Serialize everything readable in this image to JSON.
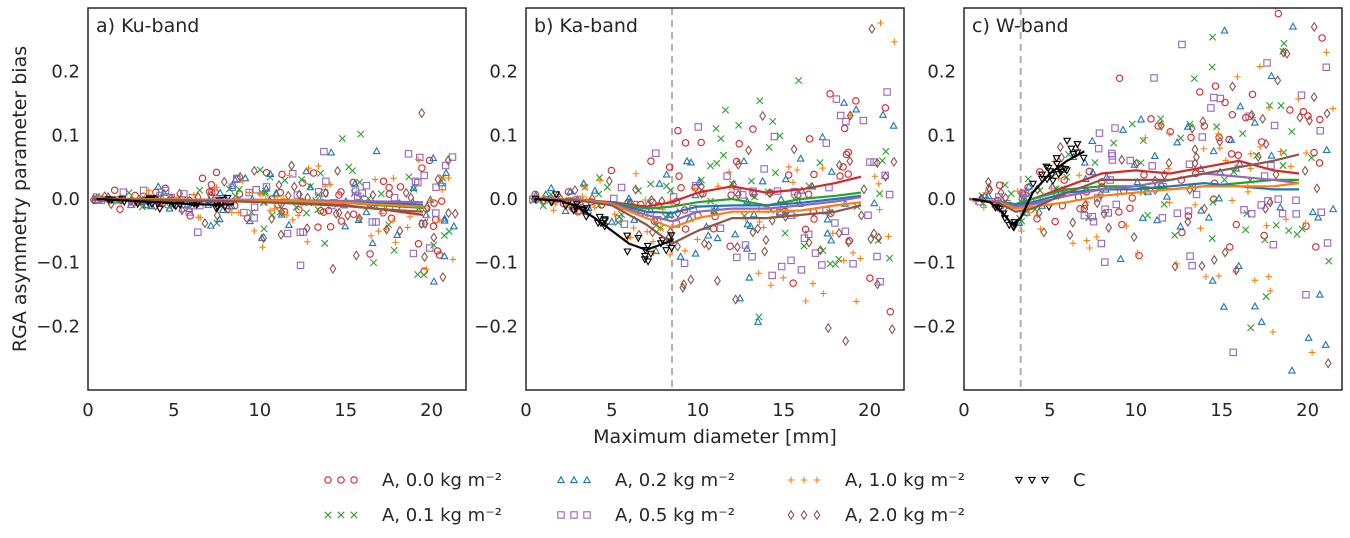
{
  "figure": {
    "ylabel": "RGA asymmetry parameter bias",
    "xlabel": "Maximum diameter [mm]"
  },
  "legend": [
    {
      "label": "A, 0.0 kg m⁻²",
      "marker": "circle",
      "color": "#d62728"
    },
    {
      "label": "A, 0.1 kg m⁻²",
      "marker": "x",
      "color": "#2ca02c"
    },
    {
      "label": "A, 0.2 kg m⁻²",
      "marker": "triangle-up",
      "color": "#1f77b4"
    },
    {
      "label": "A, 0.5 kg m⁻²",
      "marker": "square",
      "color": "#9467bd"
    },
    {
      "label": "A, 1.0 kg m⁻²",
      "marker": "plus",
      "color": "#ff7f0e"
    },
    {
      "label": "A, 2.0 kg m⁻²",
      "marker": "diamond",
      "color": "#8c564b"
    },
    {
      "label": "C",
      "marker": "triangle-down",
      "color": "#000000"
    }
  ],
  "chart_data": [
    {
      "type": "scatter",
      "title": "a) Ku-band",
      "xlim": [
        0,
        22
      ],
      "ylim": [
        -0.3,
        0.3
      ],
      "xticks": [
        0,
        5,
        10,
        15,
        20
      ],
      "yticks": [
        -0.2,
        -0.1,
        0.0,
        0.1,
        0.2
      ],
      "vline": null,
      "series": [
        {
          "name": "A, 0.0 kg m⁻²",
          "scatter_range": [
            0.3,
            21.5
          ],
          "trend": {
            "x": [
              0.3,
              3,
              6,
              9,
              12,
              15,
              17,
              19.5
            ],
            "y": [
              0.0,
              -0.001,
              -0.003,
              -0.004,
              -0.006,
              -0.01,
              -0.016,
              -0.025
            ]
          }
        },
        {
          "name": "A, 0.1 kg m⁻²",
          "scatter_range": [
            0.3,
            21.5
          ],
          "trend": {
            "x": [
              0.3,
              3,
              6,
              9,
              12,
              15,
              17,
              19.5
            ],
            "y": [
              0.0,
              -0.001,
              -0.002,
              -0.003,
              -0.004,
              -0.006,
              -0.01,
              -0.014
            ]
          }
        },
        {
          "name": "A, 0.2 kg m⁻²",
          "scatter_range": [
            0.3,
            21.5
          ],
          "trend": {
            "x": [
              0.3,
              3,
              6,
              9,
              12,
              15,
              17,
              19.5
            ],
            "y": [
              0.0,
              -0.001,
              -0.002,
              -0.002,
              -0.003,
              -0.004,
              -0.006,
              -0.009
            ]
          }
        },
        {
          "name": "A, 0.5 kg m⁻²",
          "scatter_range": [
            0.3,
            21.5
          ],
          "trend": {
            "x": [
              0.3,
              3,
              6,
              9,
              12,
              15,
              17,
              19.5
            ],
            "y": [
              0.0,
              0.0,
              -0.001,
              -0.001,
              -0.002,
              -0.003,
              -0.004,
              -0.005
            ]
          }
        },
        {
          "name": "A, 1.0 kg m⁻²",
          "scatter_range": [
            0.3,
            21.5
          ],
          "trend": {
            "x": [
              0.3,
              3,
              6,
              9,
              12,
              15,
              17,
              19.5
            ],
            "y": [
              0.0,
              0.0,
              -0.001,
              -0.002,
              -0.003,
              -0.006,
              -0.009,
              -0.012
            ]
          }
        },
        {
          "name": "A, 2.0 kg m⁻²",
          "scatter_range": [
            0.3,
            21.5
          ],
          "trend": {
            "x": [
              0.3,
              3,
              6,
              9,
              12,
              15,
              17,
              19.5
            ],
            "y": [
              0.0,
              -0.001,
              -0.002,
              -0.004,
              -0.007,
              -0.011,
              -0.016,
              -0.02
            ]
          }
        },
        {
          "name": "C",
          "scatter_range": [
            0.5,
            8.5
          ],
          "trend": {
            "x": [
              0.5,
              2,
              4,
              6,
              7.5,
              8.5
            ],
            "y": [
              0.0,
              -0.002,
              -0.005,
              -0.008,
              -0.009,
              -0.008
            ]
          }
        }
      ]
    },
    {
      "type": "scatter",
      "title": "b) Ka-band",
      "xlim": [
        0,
        22
      ],
      "ylim": [
        -0.3,
        0.3
      ],
      "xticks": [
        0,
        5,
        10,
        15,
        20
      ],
      "yticks": [
        -0.2,
        -0.1,
        0.0,
        0.1,
        0.2
      ],
      "vline": 8.5,
      "series": [
        {
          "name": "A, 0.0 kg m⁻²",
          "scatter_range": [
            0.3,
            21.5
          ],
          "trend": {
            "x": [
              0.3,
              3,
              5,
              7,
              8.5,
              10,
              12,
              14,
              16,
              18,
              19.5
            ],
            "y": [
              0.0,
              -0.001,
              -0.005,
              -0.012,
              -0.005,
              0.01,
              0.02,
              0.01,
              0.015,
              0.025,
              0.035
            ]
          }
        },
        {
          "name": "A, 0.1 kg m⁻²",
          "scatter_range": [
            0.3,
            21.5
          ],
          "trend": {
            "x": [
              0.3,
              3,
              5,
              7,
              8.5,
              10,
              12,
              14,
              16,
              18,
              19.5
            ],
            "y": [
              0.0,
              -0.001,
              -0.006,
              -0.015,
              -0.012,
              -0.005,
              0.0,
              -0.01,
              0.0,
              0.005,
              0.01
            ]
          }
        },
        {
          "name": "A, 0.2 kg m⁻²",
          "scatter_range": [
            0.3,
            21.5
          ],
          "trend": {
            "x": [
              0.3,
              3,
              5,
              7,
              8.5,
              10,
              12,
              14,
              16,
              18,
              19.5
            ],
            "y": [
              0.0,
              -0.001,
              -0.006,
              -0.02,
              -0.022,
              -0.012,
              -0.01,
              -0.01,
              -0.006,
              0.0,
              0.005
            ]
          }
        },
        {
          "name": "A, 0.5 kg m⁻²",
          "scatter_range": [
            0.3,
            21.5
          ],
          "trend": {
            "x": [
              0.3,
              3,
              5,
              7,
              8.5,
              10,
              12,
              14,
              16,
              18,
              19.5
            ],
            "y": [
              0.0,
              -0.001,
              -0.007,
              -0.025,
              -0.035,
              -0.02,
              -0.015,
              -0.015,
              -0.01,
              -0.004,
              0.003
            ]
          }
        },
        {
          "name": "A, 1.0 kg m⁻²",
          "scatter_range": [
            0.3,
            21.5
          ],
          "trend": {
            "x": [
              0.3,
              3,
              5,
              7,
              8.5,
              10,
              12,
              14,
              16,
              18,
              19.5
            ],
            "y": [
              0.0,
              -0.001,
              -0.008,
              -0.03,
              -0.045,
              -0.03,
              -0.02,
              -0.02,
              -0.018,
              -0.01,
              -0.005
            ]
          }
        },
        {
          "name": "A, 2.0 kg m⁻²",
          "scatter_range": [
            0.3,
            21.5
          ],
          "trend": {
            "x": [
              0.3,
              3,
              5,
              7,
              8.5,
              10,
              12,
              14,
              16,
              18,
              19.5
            ],
            "y": [
              0.0,
              -0.002,
              -0.01,
              -0.04,
              -0.07,
              -0.05,
              -0.03,
              -0.03,
              -0.025,
              -0.02,
              -0.01
            ]
          }
        },
        {
          "name": "C",
          "scatter_range": [
            0.5,
            8.5
          ],
          "trend": {
            "x": [
              0.5,
              2,
              3,
              4,
              5,
              6,
              7,
              8,
              8.5
            ],
            "y": [
              0.0,
              -0.003,
              -0.012,
              -0.03,
              -0.05,
              -0.07,
              -0.08,
              -0.07,
              -0.065
            ]
          }
        }
      ]
    },
    {
      "type": "scatter",
      "title": "c) W-band",
      "xlim": [
        0,
        22
      ],
      "ylim": [
        -0.3,
        0.3
      ],
      "xticks": [
        0,
        5,
        10,
        15,
        20
      ],
      "yticks": [
        -0.2,
        -0.1,
        0.0,
        0.1,
        0.2
      ],
      "vline": 3.3,
      "series": [
        {
          "name": "A, 0.0 kg m⁻²",
          "scatter_range": [
            0.3,
            21.5
          ],
          "trend": {
            "x": [
              0.3,
              2,
              3,
              4,
              6,
              8,
              10,
              12,
              14,
              16,
              18,
              19.5
            ],
            "y": [
              0.0,
              -0.005,
              -0.01,
              0.0,
              0.02,
              0.04,
              0.045,
              0.04,
              0.05,
              0.06,
              0.045,
              0.04
            ]
          }
        },
        {
          "name": "A, 0.1 kg m⁻²",
          "scatter_range": [
            0.3,
            21.5
          ],
          "trend": {
            "x": [
              0.3,
              2,
              3,
              4,
              6,
              8,
              10,
              12,
              14,
              16,
              18,
              19.5
            ],
            "y": [
              0.0,
              -0.004,
              -0.008,
              0.0,
              0.015,
              0.02,
              0.02,
              0.015,
              0.02,
              0.025,
              0.03,
              0.03
            ]
          }
        },
        {
          "name": "A, 0.2 kg m⁻²",
          "scatter_range": [
            0.3,
            21.5
          ],
          "trend": {
            "x": [
              0.3,
              2,
              3,
              4,
              6,
              8,
              10,
              12,
              14,
              16,
              18,
              19.5
            ],
            "y": [
              0.0,
              -0.004,
              -0.01,
              -0.005,
              0.01,
              0.015,
              0.015,
              0.02,
              0.025,
              0.02,
              0.015,
              0.015
            ]
          }
        },
        {
          "name": "A, 0.5 kg m⁻²",
          "scatter_range": [
            0.3,
            21.5
          ],
          "trend": {
            "x": [
              0.3,
              2,
              3,
              4,
              6,
              8,
              10,
              12,
              14,
              16,
              18,
              19.5
            ],
            "y": [
              0.0,
              -0.004,
              -0.012,
              -0.008,
              0.005,
              0.015,
              0.02,
              0.03,
              0.04,
              0.035,
              0.03,
              0.025
            ]
          }
        },
        {
          "name": "A, 1.0 kg m⁻²",
          "scatter_range": [
            0.3,
            21.5
          ],
          "trend": {
            "x": [
              0.3,
              2,
              3,
              4,
              6,
              8,
              10,
              12,
              14,
              16,
              18,
              19.5
            ],
            "y": [
              0.0,
              -0.005,
              -0.015,
              -0.012,
              -0.005,
              0.005,
              0.01,
              0.015,
              0.02,
              0.02,
              0.02,
              0.025
            ]
          }
        },
        {
          "name": "A, 2.0 kg m⁻²",
          "scatter_range": [
            0.3,
            21.5
          ],
          "trend": {
            "x": [
              0.3,
              2,
              3,
              4,
              6,
              8,
              10,
              12,
              14,
              16,
              18,
              19.5
            ],
            "y": [
              0.0,
              -0.006,
              -0.02,
              -0.015,
              0.01,
              0.03,
              0.03,
              0.03,
              0.04,
              0.05,
              0.06,
              0.07
            ]
          }
        },
        {
          "name": "C",
          "scatter_range": [
            0.5,
            7.0
          ],
          "trend": {
            "x": [
              0.5,
              1.5,
              2.2,
              2.8,
              3.3,
              4,
              5,
              6,
              7
            ],
            "y": [
              0.0,
              -0.005,
              -0.02,
              -0.04,
              -0.03,
              0.01,
              0.04,
              0.06,
              0.075
            ]
          }
        }
      ]
    }
  ]
}
